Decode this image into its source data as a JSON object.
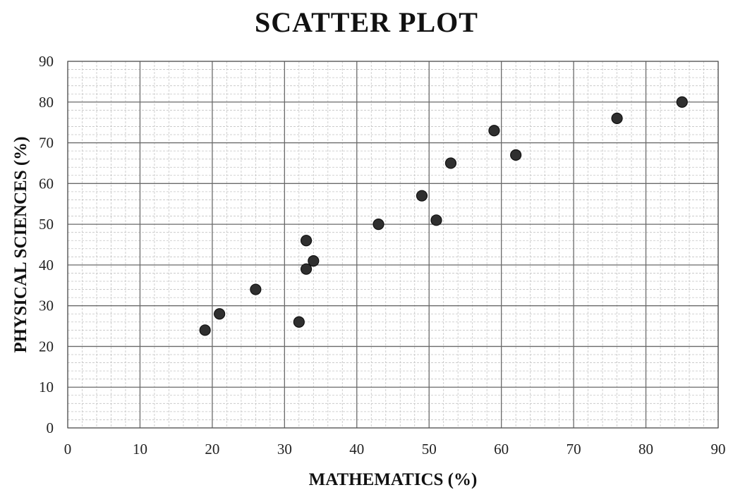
{
  "chart_data": {
    "type": "scatter",
    "title": "SCATTER PLOT",
    "xlabel": "MATHEMATICS (%)",
    "ylabel": "PHYSICAL SCIENCES (%)",
    "xlim": [
      0,
      90
    ],
    "ylim": [
      0,
      90
    ],
    "major_step": 10,
    "minor_step": 2,
    "x_ticks": [
      "0",
      "10",
      "20",
      "30",
      "40",
      "50",
      "60",
      "70",
      "80",
      "90"
    ],
    "y_ticks": [
      "0",
      "10",
      "20",
      "30",
      "40",
      "50",
      "60",
      "70",
      "80",
      "90"
    ],
    "grid": true,
    "legend": "none",
    "marker_color": "#2f2f2f",
    "points": [
      {
        "x": 19,
        "y": 24
      },
      {
        "x": 21,
        "y": 28
      },
      {
        "x": 26,
        "y": 34
      },
      {
        "x": 32,
        "y": 26
      },
      {
        "x": 33,
        "y": 39
      },
      {
        "x": 33,
        "y": 46
      },
      {
        "x": 34,
        "y": 41
      },
      {
        "x": 43,
        "y": 50
      },
      {
        "x": 49,
        "y": 57
      },
      {
        "x": 51,
        "y": 51
      },
      {
        "x": 53,
        "y": 65
      },
      {
        "x": 59,
        "y": 73
      },
      {
        "x": 62,
        "y": 67
      },
      {
        "x": 76,
        "y": 76
      },
      {
        "x": 85,
        "y": 80
      }
    ]
  }
}
